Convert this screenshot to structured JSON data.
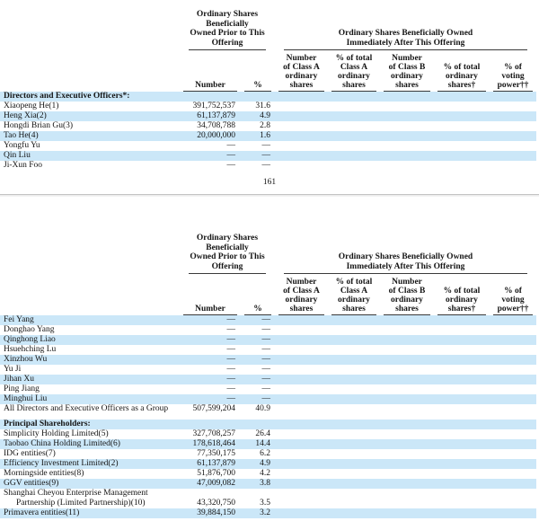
{
  "colors": {
    "highlight": "#cbe7f8",
    "rule": "#3a3a3a",
    "divider": "#c4c4c4"
  },
  "page_number": "161",
  "header": {
    "prior_group_lines": [
      "Ordinary Shares",
      "Beneficially",
      "Owned Prior to This",
      "Offering"
    ],
    "after_group_lines": [
      "Ordinary Shares Beneficially Owned",
      "Immediately After This Offering"
    ],
    "columns": {
      "prior_number": "Number",
      "prior_pct": "%",
      "class_a_number": [
        "Number",
        "of Class A",
        "ordinary",
        "shares"
      ],
      "class_a_pct": [
        "% of total",
        "Class A",
        "ordinary",
        "shares"
      ],
      "class_b_number": [
        "Number",
        "of Class B",
        "ordinary",
        "shares"
      ],
      "total_ordinary_pct": [
        "% of total",
        "ordinary",
        "shares†"
      ],
      "voting_power_pct": [
        "% of",
        "voting",
        "power††"
      ]
    }
  },
  "table1": {
    "rows": [
      {
        "label": "Directors and Executive Officers*:",
        "number": "",
        "pct": "",
        "bold": true,
        "shaded": true
      },
      {
        "label": "Xiaopeng He(1)",
        "number": "391,752,537",
        "pct": "31.6",
        "shaded": false
      },
      {
        "label": "Heng Xia(2)",
        "number": "61,137,879",
        "pct": "4.9",
        "shaded": true
      },
      {
        "label": "Hongdi Brian Gu(3)",
        "number": "34,708,788",
        "pct": "2.8",
        "shaded": false
      },
      {
        "label": "Tao He(4)",
        "number": "20,000,000",
        "pct": "1.6",
        "shaded": true
      },
      {
        "label": "Yongfu Yu",
        "number": "—",
        "pct": "—",
        "shaded": false
      },
      {
        "label": "Qin Liu",
        "number": "—",
        "pct": "—",
        "shaded": true
      },
      {
        "label": "Ji-Xun Foo",
        "number": "—",
        "pct": "—",
        "shaded": false
      }
    ]
  },
  "table2": {
    "rows": [
      {
        "label": "Fei Yang",
        "number": "—",
        "pct": "—",
        "shaded": true
      },
      {
        "label": "Donghao Yang",
        "number": "—",
        "pct": "—",
        "shaded": false
      },
      {
        "label": "Qinghong Liao",
        "number": "—",
        "pct": "—",
        "shaded": true
      },
      {
        "label": "Hsuehching Lu",
        "number": "—",
        "pct": "—",
        "shaded": false
      },
      {
        "label": "Xinzhou Wu",
        "number": "—",
        "pct": "—",
        "shaded": true
      },
      {
        "label": "Yu Ji",
        "number": "—",
        "pct": "—",
        "shaded": false
      },
      {
        "label": "Jihan Xu",
        "number": "—",
        "pct": "—",
        "shaded": true
      },
      {
        "label": "Ping Jiang",
        "number": "—",
        "pct": "—",
        "shaded": false
      },
      {
        "label": "Minghui Liu",
        "number": "—",
        "pct": "—",
        "shaded": true
      },
      {
        "label": "All Directors and Executive Officers as a Group",
        "number": "507,599,204",
        "pct": "40.9",
        "shaded": false
      },
      {
        "spacer": true
      },
      {
        "label": "Principal Shareholders:",
        "number": "",
        "pct": "",
        "bold": true,
        "shaded": true
      },
      {
        "label": "Simplicity Holding Limited(5)",
        "number": "327,708,257",
        "pct": "26.4",
        "shaded": false
      },
      {
        "label": "Taobao China Holding Limited(6)",
        "number": "178,618,464",
        "pct": "14.4",
        "shaded": true
      },
      {
        "label": "IDG entities(7)",
        "number": "77,350,175",
        "pct": "6.2",
        "shaded": false
      },
      {
        "label": "Efficiency Investment Limited(2)",
        "number": "61,137,879",
        "pct": "4.9",
        "shaded": true
      },
      {
        "label": "Morningside entities(8)",
        "number": "51,876,700",
        "pct": "4.2",
        "shaded": false
      },
      {
        "label": "GGV entities(9)",
        "number": "47,009,082",
        "pct": "3.8",
        "shaded": true
      },
      {
        "label": "Shanghai Cheyou Enterprise Management Partnership (Limited Partnership)(10)",
        "number": "43,320,750",
        "pct": "3.5",
        "shaded": false,
        "wrap_indent": true
      },
      {
        "label": "Primavera entities(11)",
        "number": "39,884,150",
        "pct": "3.2",
        "shaded": true
      }
    ]
  }
}
